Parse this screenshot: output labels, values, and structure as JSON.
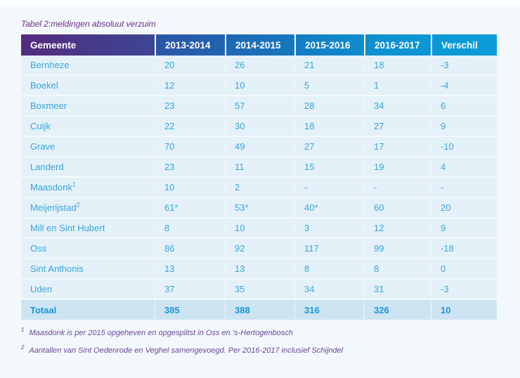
{
  "page": {
    "title": "Tabel 2:meldingen absoluut verzuim"
  },
  "table": {
    "columns": [
      "Gemeente",
      "2013-2014",
      "2014-2015",
      "2015-2016",
      "2016-2017",
      "Verschil"
    ],
    "rows": [
      {
        "gemeente": "Bernheze",
        "sup": "",
        "values": [
          "20",
          "26",
          "21",
          "18",
          "-3"
        ]
      },
      {
        "gemeente": "Boekel",
        "sup": "",
        "values": [
          "12",
          "10",
          "5",
          "1",
          "-4"
        ]
      },
      {
        "gemeente": "Boxmeer",
        "sup": "",
        "values": [
          "23",
          "57",
          "28",
          "34",
          "6"
        ]
      },
      {
        "gemeente": "Cuijk",
        "sup": "",
        "values": [
          "22",
          "30",
          "18",
          "27",
          "9"
        ]
      },
      {
        "gemeente": "Grave",
        "sup": "",
        "values": [
          "70",
          "49",
          "27",
          "17",
          "-10"
        ]
      },
      {
        "gemeente": "Landerd",
        "sup": "",
        "values": [
          "23",
          "11",
          "15",
          "19",
          "4"
        ]
      },
      {
        "gemeente": "Maasdonk",
        "sup": "1",
        "values": [
          "10",
          "2",
          "-",
          "-",
          "-"
        ]
      },
      {
        "gemeente": "Meijerijstad",
        "sup": "2",
        "values": [
          "61*",
          "53*",
          "40*",
          "60",
          "20"
        ]
      },
      {
        "gemeente": "Mill en Sint Hubert",
        "sup": "",
        "values": [
          "8",
          "10",
          "3",
          "12",
          "9"
        ]
      },
      {
        "gemeente": "Oss",
        "sup": "",
        "values": [
          "86",
          "92",
          "117",
          "99",
          "-18"
        ]
      },
      {
        "gemeente": "Sint Anthonis",
        "sup": "",
        "values": [
          "13",
          "13",
          "8",
          "8",
          "0"
        ]
      },
      {
        "gemeente": "Uden",
        "sup": "",
        "values": [
          "37",
          "35",
          "34",
          "31",
          "-3"
        ]
      }
    ],
    "total": {
      "label": "Totaal",
      "values": [
        "385",
        "388",
        "316",
        "326",
        "10"
      ]
    }
  },
  "footnotes": [
    {
      "marker": "1",
      "text": "Maasdonk is per 2015 opgeheven en opgesplitst in Oss en ‘s-Hertogenbosch"
    },
    {
      "marker": "2",
      "text": "Aantallen van Sint Oedenrode en Veghel samengevoegd. Per 2016-2017 inclusief Schijndel"
    }
  ],
  "colors": {
    "header_gradient_start": "#542b7e",
    "header_gradient_end": "#0b9cd9",
    "header_text": "#ffffff",
    "row_bg": "#e5f1f9",
    "total_row_bg": "#cde4f3",
    "data_text": "#38a5d7",
    "total_text": "#1a97d3",
    "title_text": "#6e2d87",
    "footnote_text": "#6b4795"
  }
}
